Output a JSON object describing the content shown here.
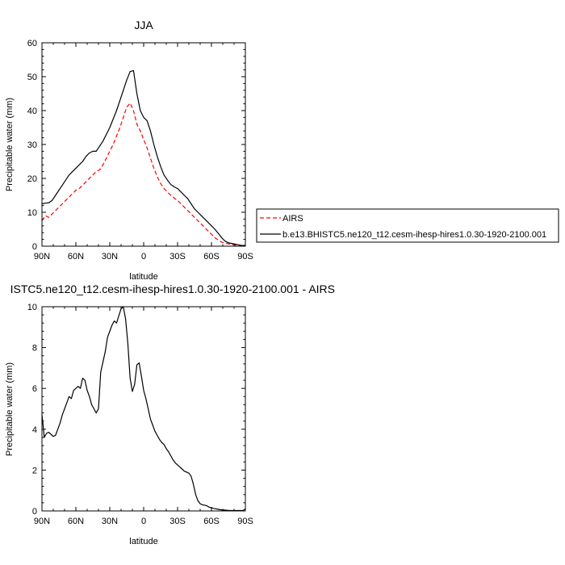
{
  "chart_data": [
    {
      "type": "line",
      "title": "JJA",
      "xlabel": "latitude",
      "ylabel": "Precipitable water (mm)",
      "xlim": [
        -90,
        90
      ],
      "ylim": [
        0,
        60
      ],
      "x_ticks": [
        -90,
        -60,
        -30,
        0,
        30,
        60,
        90
      ],
      "x_tick_labels": [
        "90N",
        "60N",
        "30N",
        "0",
        "30S",
        "60S",
        "90S"
      ],
      "y_ticks": [
        0,
        10,
        20,
        30,
        40,
        50,
        60
      ],
      "y_tick_labels": [
        "0",
        "10",
        "20",
        "30",
        "40",
        "50",
        "60"
      ],
      "legend_position": "right-outside",
      "series": [
        {
          "name": "AIRS",
          "color": "#ff0000",
          "dash": "dashed",
          "x": [
            -90,
            -87,
            -84,
            -81,
            -78,
            -75,
            -72,
            -69,
            -66,
            -63,
            -60,
            -57,
            -54,
            -51,
            -48,
            -45,
            -42,
            -39,
            -36,
            -33,
            -30,
            -27,
            -24,
            -21,
            -18,
            -15,
            -12,
            -9,
            -6,
            -3,
            0,
            3,
            6,
            9,
            12,
            15,
            18,
            21,
            24,
            27,
            30,
            33,
            36,
            39,
            42,
            45,
            48,
            51,
            54,
            57,
            60,
            63,
            66,
            69,
            72,
            75,
            78,
            81,
            84,
            87,
            90
          ],
          "y": [
            7.5,
            9,
            8.5,
            9.5,
            10.5,
            11.5,
            12.5,
            13.5,
            14.5,
            15.5,
            16.5,
            17,
            18,
            19,
            20,
            21,
            22,
            22.5,
            24,
            26,
            28,
            30,
            32.5,
            35,
            38,
            41,
            42.2,
            40,
            36,
            34,
            31.5,
            29,
            26,
            23,
            20.5,
            18.5,
            17,
            16,
            15,
            14.2,
            13.5,
            12.5,
            11.5,
            10.5,
            9.5,
            8.5,
            7.5,
            6.5,
            5.5,
            4.5,
            3.5,
            2.5,
            1.8,
            1.2,
            0.9,
            0.7,
            0.5,
            0.3,
            0.2,
            0.1,
            0.1
          ]
        },
        {
          "name": "b.e13.BHISTC5.ne120_t12.cesm-ihesp-hires1.0.30-1920-2100.001",
          "color": "#000000",
          "dash": "solid",
          "x": [
            -90,
            -87,
            -84,
            -81,
            -78,
            -75,
            -72,
            -69,
            -66,
            -63,
            -60,
            -57,
            -54,
            -51,
            -48,
            -45,
            -42,
            -39,
            -36,
            -33,
            -30,
            -27,
            -24,
            -21,
            -18,
            -15,
            -12,
            -9,
            -6,
            -3,
            0,
            3,
            6,
            9,
            12,
            15,
            18,
            21,
            24,
            27,
            30,
            33,
            36,
            39,
            42,
            45,
            48,
            51,
            54,
            57,
            60,
            63,
            66,
            69,
            72,
            75,
            78,
            81,
            84,
            87,
            90
          ],
          "y": [
            12.5,
            12.7,
            12.8,
            13.5,
            15,
            16.5,
            18,
            19.5,
            21,
            22,
            23,
            24,
            25,
            26.5,
            27.5,
            28,
            28,
            29.5,
            31,
            33,
            35,
            37.5,
            40,
            43,
            46,
            49,
            51.5,
            51.8,
            45,
            40,
            38,
            37,
            34,
            30,
            26.5,
            23.5,
            21,
            19.5,
            18.2,
            17.5,
            17,
            16,
            15,
            14,
            12.5,
            11,
            10,
            9,
            8,
            7,
            6,
            5,
            3.8,
            2.5,
            1.5,
            1,
            0.8,
            0.6,
            0.4,
            0.2,
            0.2
          ]
        }
      ]
    },
    {
      "type": "line",
      "title": "ISTC5.ne120_t12.cesm-ihesp-hires1.0.30-1920-2100.001 - AIRS",
      "xlabel": "latitude",
      "ylabel": "Precipitable water (mm)",
      "xlim": [
        -90,
        90
      ],
      "ylim": [
        0,
        10
      ],
      "x_ticks": [
        -90,
        -60,
        -30,
        0,
        30,
        60,
        90
      ],
      "x_tick_labels": [
        "90N",
        "60N",
        "30N",
        "0",
        "30S",
        "60S",
        "90S"
      ],
      "y_ticks": [
        0,
        2,
        4,
        6,
        8,
        10
      ],
      "y_tick_labels": [
        "0",
        "2",
        "4",
        "6",
        "8",
        "10"
      ],
      "series": [
        {
          "color": "#000000",
          "dash": "solid",
          "x": [
            -90,
            -89,
            -88,
            -86,
            -84,
            -82,
            -80,
            -78,
            -76,
            -74,
            -72,
            -70,
            -68,
            -66,
            -64,
            -62,
            -60,
            -58,
            -56,
            -54,
            -52,
            -50,
            -48,
            -46,
            -44,
            -42,
            -40,
            -38,
            -36,
            -34,
            -32,
            -30,
            -28,
            -26,
            -24,
            -22,
            -20,
            -18,
            -16,
            -14,
            -12,
            -10,
            -8,
            -6,
            -4,
            -2,
            0,
            2,
            4,
            6,
            8,
            10,
            12,
            14,
            16,
            18,
            20,
            22,
            24,
            26,
            28,
            30,
            32,
            34,
            36,
            38,
            40,
            42,
            44,
            46,
            48,
            50,
            52,
            54,
            56,
            58,
            60,
            62,
            64,
            66,
            68,
            70,
            72,
            74,
            76,
            78,
            80,
            82,
            84,
            86,
            88,
            90
          ],
          "y": [
            4.7,
            4.2,
            3.6,
            3.8,
            3.85,
            3.75,
            3.65,
            3.7,
            4.0,
            4.3,
            4.7,
            5.0,
            5.3,
            5.6,
            5.5,
            5.9,
            6.0,
            6.1,
            6.0,
            6.5,
            6.4,
            5.9,
            5.6,
            5.2,
            5.0,
            4.8,
            5.0,
            6.8,
            7.3,
            7.8,
            8.5,
            8.8,
            9.1,
            9.3,
            9.2,
            9.55,
            9.9,
            10.0,
            9.4,
            8.2,
            6.5,
            5.85,
            6.2,
            7.15,
            7.25,
            6.6,
            5.9,
            5.5,
            5.0,
            4.5,
            4.2,
            3.9,
            3.7,
            3.5,
            3.35,
            3.25,
            3.05,
            2.9,
            2.7,
            2.5,
            2.35,
            2.25,
            2.15,
            2.05,
            1.95,
            1.9,
            1.85,
            1.7,
            1.3,
            0.8,
            0.5,
            0.35,
            0.3,
            0.28,
            0.25,
            0.18,
            0.15,
            0.12,
            0.1,
            0.08,
            0.06,
            0.05,
            0.04,
            0.03,
            0.02,
            0.02,
            0.02,
            0.02,
            0.02,
            0.02,
            0.02,
            0.1
          ]
        }
      ]
    }
  ]
}
